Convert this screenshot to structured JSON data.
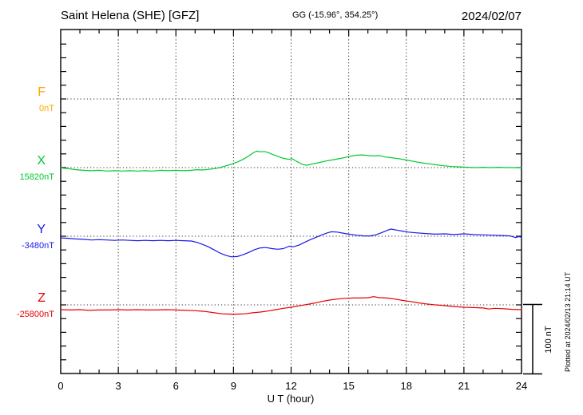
{
  "header": {
    "station_title": "Saint Helena (SHE)  [GFZ]",
    "coords": "GG (-15.96°, 354.25°)",
    "date": "2024/02/07"
  },
  "footer": {
    "plotted_at": "Plotted at 2024/02/13 21:14 UT"
  },
  "chart_data": {
    "type": "line",
    "title": "Saint Helena (SHE)  [GFZ]",
    "subtitle": "GG (-15.96°, 354.25°)",
    "date": "2024/02/07",
    "xlabel": "U T (hour)",
    "xlim": [
      0,
      24
    ],
    "x_ticks": [
      0,
      3,
      6,
      9,
      12,
      15,
      18,
      21,
      24
    ],
    "x_minor_step_hours": 1,
    "y_minor_tick_nT": 20,
    "baseline_spacing_nT": 100,
    "grid": true,
    "grid_color": "#3A3A3A",
    "axis_color": "#000000",
    "scale_bar": {
      "label": "100 nT",
      "nT": 100
    },
    "plotted_at": "Plotted at 2024/02/13 21:14 UT",
    "series": [
      {
        "name": "F",
        "baseline_label": "0nT",
        "color": "#FFA500",
        "points": []
      },
      {
        "name": "X",
        "baseline_label": "15820nT",
        "color": "#00C832",
        "points": [
          [
            0,
            -0.5
          ],
          [
            0.4,
            -1.5
          ],
          [
            0.8,
            -3
          ],
          [
            1.2,
            -4
          ],
          [
            1.6,
            -4.5
          ],
          [
            2,
            -4
          ],
          [
            2.4,
            -5
          ],
          [
            2.8,
            -4.5
          ],
          [
            3.2,
            -5
          ],
          [
            3.6,
            -4.5
          ],
          [
            4,
            -5
          ],
          [
            4.4,
            -4.5
          ],
          [
            4.8,
            -5
          ],
          [
            5.2,
            -4
          ],
          [
            5.6,
            -4.5
          ],
          [
            6,
            -4
          ],
          [
            6.4,
            -4.5
          ],
          [
            6.8,
            -4
          ],
          [
            7.1,
            -3
          ],
          [
            7.4,
            -3.5
          ],
          [
            7.7,
            -2.5
          ],
          [
            8,
            -1.5
          ],
          [
            8.3,
            0
          ],
          [
            8.6,
            2.5
          ],
          [
            8.9,
            5
          ],
          [
            9.2,
            8
          ],
          [
            9.5,
            12
          ],
          [
            9.8,
            17
          ],
          [
            10,
            21
          ],
          [
            10.2,
            24
          ],
          [
            10.4,
            23
          ],
          [
            10.6,
            23.5
          ],
          [
            10.8,
            22
          ],
          [
            11,
            19.5
          ],
          [
            11.3,
            16.5
          ],
          [
            11.6,
            13.5
          ],
          [
            11.9,
            12
          ],
          [
            12.05,
            13
          ],
          [
            12.2,
            10.5
          ],
          [
            12.4,
            7.5
          ],
          [
            12.6,
            4.5
          ],
          [
            12.8,
            3.5
          ],
          [
            13,
            4.5
          ],
          [
            13.4,
            7
          ],
          [
            13.8,
            9.5
          ],
          [
            14.2,
            11.5
          ],
          [
            14.6,
            13.5
          ],
          [
            15,
            16
          ],
          [
            15.4,
            18
          ],
          [
            15.7,
            18.5
          ],
          [
            16,
            17.5
          ],
          [
            16.3,
            17
          ],
          [
            16.6,
            17.5
          ],
          [
            16.9,
            15.5
          ],
          [
            17.2,
            14.5
          ],
          [
            17.6,
            13
          ],
          [
            18,
            11
          ],
          [
            18.4,
            9
          ],
          [
            18.8,
            7
          ],
          [
            19.2,
            5.5
          ],
          [
            19.6,
            4
          ],
          [
            20,
            2.5
          ],
          [
            20.4,
            1.5
          ],
          [
            20.8,
            1
          ],
          [
            21.2,
            0.5
          ],
          [
            21.6,
            0
          ],
          [
            22,
            0.5
          ],
          [
            22.4,
            0
          ],
          [
            22.8,
            0.5
          ],
          [
            23.2,
            0
          ],
          [
            23.6,
            0
          ],
          [
            24,
            0
          ]
        ]
      },
      {
        "name": "Y",
        "baseline_label": "-3480nT",
        "color": "#1A1AE6",
        "points": [
          [
            0,
            -2.5
          ],
          [
            0.4,
            -3
          ],
          [
            0.8,
            -4
          ],
          [
            1.2,
            -4.5
          ],
          [
            1.6,
            -5.5
          ],
          [
            2,
            -5
          ],
          [
            2.4,
            -5.5
          ],
          [
            2.8,
            -6
          ],
          [
            3.2,
            -5.5
          ],
          [
            3.6,
            -6
          ],
          [
            4,
            -6.5
          ],
          [
            4.4,
            -6
          ],
          [
            4.8,
            -6.5
          ],
          [
            5.2,
            -6
          ],
          [
            5.6,
            -6.5
          ],
          [
            6,
            -6
          ],
          [
            6.4,
            -6.5
          ],
          [
            6.8,
            -7
          ],
          [
            7.1,
            -9
          ],
          [
            7.4,
            -12
          ],
          [
            7.7,
            -15.5
          ],
          [
            8,
            -20
          ],
          [
            8.3,
            -24.5
          ],
          [
            8.6,
            -28
          ],
          [
            8.9,
            -30
          ],
          [
            9.2,
            -29.5
          ],
          [
            9.5,
            -27
          ],
          [
            9.8,
            -23.5
          ],
          [
            10.1,
            -19.5
          ],
          [
            10.4,
            -17
          ],
          [
            10.7,
            -16.5
          ],
          [
            11,
            -18
          ],
          [
            11.3,
            -19
          ],
          [
            11.6,
            -18
          ],
          [
            11.9,
            -14.5
          ],
          [
            12.1,
            -15.5
          ],
          [
            12.4,
            -13
          ],
          [
            12.7,
            -9
          ],
          [
            13,
            -5
          ],
          [
            13.3,
            -1.5
          ],
          [
            13.6,
            2
          ],
          [
            13.9,
            5
          ],
          [
            14.1,
            6.5
          ],
          [
            14.4,
            6
          ],
          [
            14.7,
            4.5
          ],
          [
            15,
            3
          ],
          [
            15.4,
            1.5
          ],
          [
            15.8,
            0.5
          ],
          [
            16.1,
            0.5
          ],
          [
            16.4,
            2
          ],
          [
            16.7,
            5
          ],
          [
            17,
            8.5
          ],
          [
            17.2,
            10.5
          ],
          [
            17.5,
            9
          ],
          [
            17.8,
            7.5
          ],
          [
            18.1,
            6
          ],
          [
            18.5,
            5
          ],
          [
            19,
            4
          ],
          [
            19.5,
            3
          ],
          [
            20,
            3.5
          ],
          [
            20.5,
            2.5
          ],
          [
            21,
            3.5
          ],
          [
            21.5,
            2.5
          ],
          [
            22,
            2
          ],
          [
            22.5,
            1.5
          ],
          [
            23,
            1
          ],
          [
            23.4,
            0.5
          ],
          [
            23.7,
            -2
          ],
          [
            23.85,
            -0.5
          ],
          [
            24,
            -1.5
          ]
        ]
      },
      {
        "name": "Z",
        "baseline_label": "-25800nT",
        "color": "#E60000",
        "points": [
          [
            0,
            -7
          ],
          [
            0.5,
            -7.5
          ],
          [
            1,
            -7
          ],
          [
            1.5,
            -8
          ],
          [
            2,
            -7.5
          ],
          [
            2.5,
            -7.5
          ],
          [
            3,
            -7
          ],
          [
            3.5,
            -7.5
          ],
          [
            4,
            -7
          ],
          [
            4.5,
            -7.5
          ],
          [
            5,
            -7.5
          ],
          [
            5.5,
            -7
          ],
          [
            6,
            -7.5
          ],
          [
            6.5,
            -8
          ],
          [
            7,
            -8.5
          ],
          [
            7.5,
            -9.5
          ],
          [
            8,
            -11.5
          ],
          [
            8.4,
            -13
          ],
          [
            8.8,
            -13.5
          ],
          [
            9.2,
            -13.5
          ],
          [
            9.6,
            -13
          ],
          [
            10,
            -11.5
          ],
          [
            10.4,
            -10.5
          ],
          [
            10.8,
            -9
          ],
          [
            11.2,
            -7
          ],
          [
            11.6,
            -5
          ],
          [
            12,
            -3.5
          ],
          [
            12.4,
            -1.5
          ],
          [
            12.8,
            0.5
          ],
          [
            13.2,
            2.5
          ],
          [
            13.6,
            5
          ],
          [
            14,
            7
          ],
          [
            14.4,
            8.5
          ],
          [
            14.8,
            9.5
          ],
          [
            15.2,
            10
          ],
          [
            15.6,
            10
          ],
          [
            16,
            10.5
          ],
          [
            16.3,
            12
          ],
          [
            16.6,
            10.5
          ],
          [
            17,
            10
          ],
          [
            17.4,
            8.5
          ],
          [
            17.8,
            6.5
          ],
          [
            18.2,
            5
          ],
          [
            18.6,
            3
          ],
          [
            19,
            1.5
          ],
          [
            19.5,
            0
          ],
          [
            20,
            -1
          ],
          [
            20.5,
            -2.5
          ],
          [
            21,
            -3.5
          ],
          [
            21.5,
            -4
          ],
          [
            22,
            -4.5
          ],
          [
            22.3,
            -6
          ],
          [
            22.6,
            -5
          ],
          [
            23,
            -5.5
          ],
          [
            23.5,
            -6.5
          ],
          [
            24,
            -7
          ]
        ]
      }
    ]
  }
}
